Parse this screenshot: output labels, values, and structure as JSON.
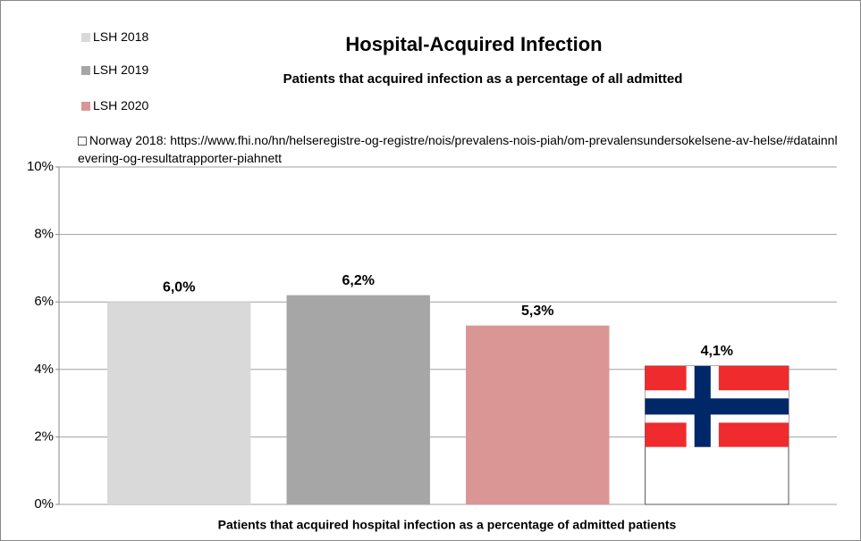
{
  "chart_data": {
    "type": "bar",
    "title": "Hospital-Acquired Infection",
    "subtitle": "Patients that acquired infection as a percentage of all admitted",
    "x_label": "Patients that acquired hospital infection as a percentage of admitted patients",
    "series": [
      {
        "name": "LSH 2018",
        "color": "#d9d9d9",
        "values": [
          6.0
        ],
        "value_labels": [
          "6,0%"
        ]
      },
      {
        "name": "LSH 2019",
        "color": "#a6a6a6",
        "values": [
          6.2
        ],
        "value_labels": [
          "6,2%"
        ]
      },
      {
        "name": "LSH 2020",
        "color": "#da9694",
        "values": [
          5.3
        ],
        "value_labels": [
          "5,3%"
        ]
      },
      {
        "name": "Norway 2018:  https://www.fhi.no/hn/helseregistre-og-registre/nois/prevalens-nois-piah/om-prevalensundersokelsene-av-helse/#datainnlevering-og-resultatrapporter-piahnett",
        "color": "#ffffff",
        "values": [
          4.1
        ],
        "value_labels": [
          "4,1%"
        ]
      }
    ],
    "ylim": [
      0,
      10
    ],
    "yticks": [
      {
        "value": 0,
        "label": "0%"
      },
      {
        "value": 2,
        "label": "2%"
      },
      {
        "value": 4,
        "label": "4%"
      },
      {
        "value": 6,
        "label": "6%"
      },
      {
        "value": 8,
        "label": "8%"
      },
      {
        "value": 10,
        "label": "10%"
      }
    ],
    "grid": true,
    "legend": "top-left"
  }
}
